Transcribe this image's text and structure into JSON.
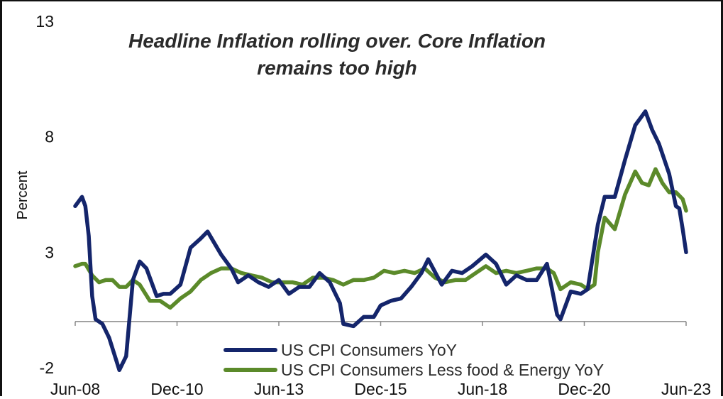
{
  "chart_data": {
    "type": "line",
    "title_lines": [
      "Headline Inflation rolling over. Core Inflation",
      "remains too high"
    ],
    "ylabel": "Percent",
    "xlabel": "",
    "ylim": [
      -2,
      13
    ],
    "y_ticks": [
      "13",
      "8",
      "3",
      "-2"
    ],
    "x_ticks": [
      "Jun-08",
      "Dec-10",
      "Jun-13",
      "Dec-15",
      "Jun-18",
      "Dec-20",
      "Jun-23"
    ],
    "legend_position": "bottom-center",
    "colors": {
      "headline": "#14256b",
      "core": "#5b8a2a",
      "axis": "#888888"
    },
    "series": [
      {
        "name": "US CPI Consumers YoY",
        "x": [
          "Jun-08",
          "Aug-08",
          "Sep-08",
          "Oct-08",
          "Nov-08",
          "Dec-08",
          "Feb-09",
          "Apr-09",
          "Jul-09",
          "Sep-09",
          "Nov-09",
          "Jan-10",
          "Mar-10",
          "Jun-10",
          "Aug-10",
          "Oct-10",
          "Jan-11",
          "Apr-11",
          "Jul-11",
          "Sep-11",
          "Nov-11",
          "Jan-12",
          "Apr-12",
          "Jun-12",
          "Sep-12",
          "Dec-12",
          "Mar-13",
          "Jun-13",
          "Sep-13",
          "Dec-13",
          "Mar-14",
          "Jun-14",
          "Sep-14",
          "Dec-14",
          "Jan-15",
          "Apr-15",
          "Jul-15",
          "Oct-15",
          "Dec-15",
          "Mar-16",
          "Jun-16",
          "Sep-16",
          "Dec-16",
          "Feb-17",
          "Jun-17",
          "Sep-17",
          "Dec-17",
          "Mar-18",
          "Jul-18",
          "Oct-18",
          "Jan-19",
          "Apr-19",
          "Jul-19",
          "Oct-19",
          "Jan-20",
          "Apr-20",
          "May-20",
          "Aug-20",
          "Nov-20",
          "Jan-21",
          "Apr-21",
          "Jun-21",
          "Sep-21",
          "Dec-21",
          "Mar-22",
          "Jun-22",
          "Aug-22",
          "Oct-22",
          "Jan-23",
          "Mar-23",
          "Apr-23",
          "May-23",
          "Jun-23"
        ],
        "values": [
          5.0,
          5.4,
          5.0,
          3.7,
          1.1,
          0.1,
          -0.1,
          -0.7,
          -2.1,
          -1.5,
          1.8,
          2.6,
          2.3,
          1.1,
          1.2,
          1.2,
          1.6,
          3.2,
          3.6,
          3.9,
          3.4,
          2.9,
          2.3,
          1.7,
          2.0,
          1.7,
          1.5,
          1.8,
          1.2,
          1.5,
          1.5,
          2.1,
          1.7,
          0.8,
          -0.1,
          -0.2,
          0.2,
          0.2,
          0.7,
          0.9,
          1.0,
          1.5,
          2.1,
          2.7,
          1.6,
          2.2,
          2.1,
          2.4,
          2.9,
          2.5,
          1.6,
          2.0,
          1.8,
          1.8,
          2.5,
          0.3,
          0.1,
          1.3,
          1.2,
          1.4,
          4.2,
          5.4,
          5.4,
          7.0,
          8.5,
          9.1,
          8.3,
          7.7,
          6.4,
          5.0,
          4.9,
          4.0,
          3.0
        ]
      },
      {
        "name": "US CPI Consumers Less food & Energy YoY",
        "x": [
          "Jun-08",
          "Aug-08",
          "Sep-08",
          "Nov-08",
          "Jan-09",
          "Mar-09",
          "May-09",
          "Jul-09",
          "Sep-09",
          "Nov-09",
          "Jan-10",
          "Apr-10",
          "Jul-10",
          "Oct-10",
          "Jan-11",
          "Apr-11",
          "Jul-11",
          "Oct-11",
          "Jan-12",
          "Apr-12",
          "Jul-12",
          "Oct-12",
          "Jan-13",
          "Apr-13",
          "Jul-13",
          "Oct-13",
          "Jan-14",
          "Apr-14",
          "Jul-14",
          "Oct-14",
          "Jan-15",
          "Apr-15",
          "Jul-15",
          "Oct-15",
          "Jan-16",
          "Apr-16",
          "Jul-16",
          "Oct-16",
          "Jan-17",
          "Apr-17",
          "Jul-17",
          "Oct-17",
          "Jan-18",
          "Apr-18",
          "Jul-18",
          "Oct-18",
          "Jan-19",
          "Apr-19",
          "Jul-19",
          "Oct-19",
          "Jan-20",
          "Mar-20",
          "May-20",
          "Aug-20",
          "Nov-20",
          "Jan-21",
          "Mar-21",
          "Apr-21",
          "Jun-21",
          "Sep-21",
          "Dec-21",
          "Mar-22",
          "May-22",
          "Jul-22",
          "Sep-22",
          "Nov-22",
          "Jan-23",
          "Mar-23",
          "May-23",
          "Jun-23"
        ],
        "values": [
          2.4,
          2.5,
          2.5,
          2.0,
          1.7,
          1.8,
          1.8,
          1.5,
          1.5,
          1.8,
          1.6,
          0.9,
          0.9,
          0.6,
          1.0,
          1.3,
          1.8,
          2.1,
          2.3,
          2.3,
          2.1,
          2.0,
          1.9,
          1.7,
          1.7,
          1.7,
          1.6,
          1.9,
          1.9,
          1.8,
          1.6,
          1.8,
          1.8,
          1.9,
          2.2,
          2.1,
          2.2,
          2.1,
          2.3,
          1.9,
          1.7,
          1.8,
          1.8,
          2.1,
          2.4,
          2.1,
          2.2,
          2.1,
          2.2,
          2.3,
          2.3,
          2.1,
          1.4,
          1.7,
          1.6,
          1.4,
          1.6,
          3.0,
          4.5,
          4.0,
          5.5,
          6.5,
          6.0,
          5.9,
          6.6,
          6.0,
          5.6,
          5.6,
          5.3,
          4.8
        ]
      }
    ]
  }
}
